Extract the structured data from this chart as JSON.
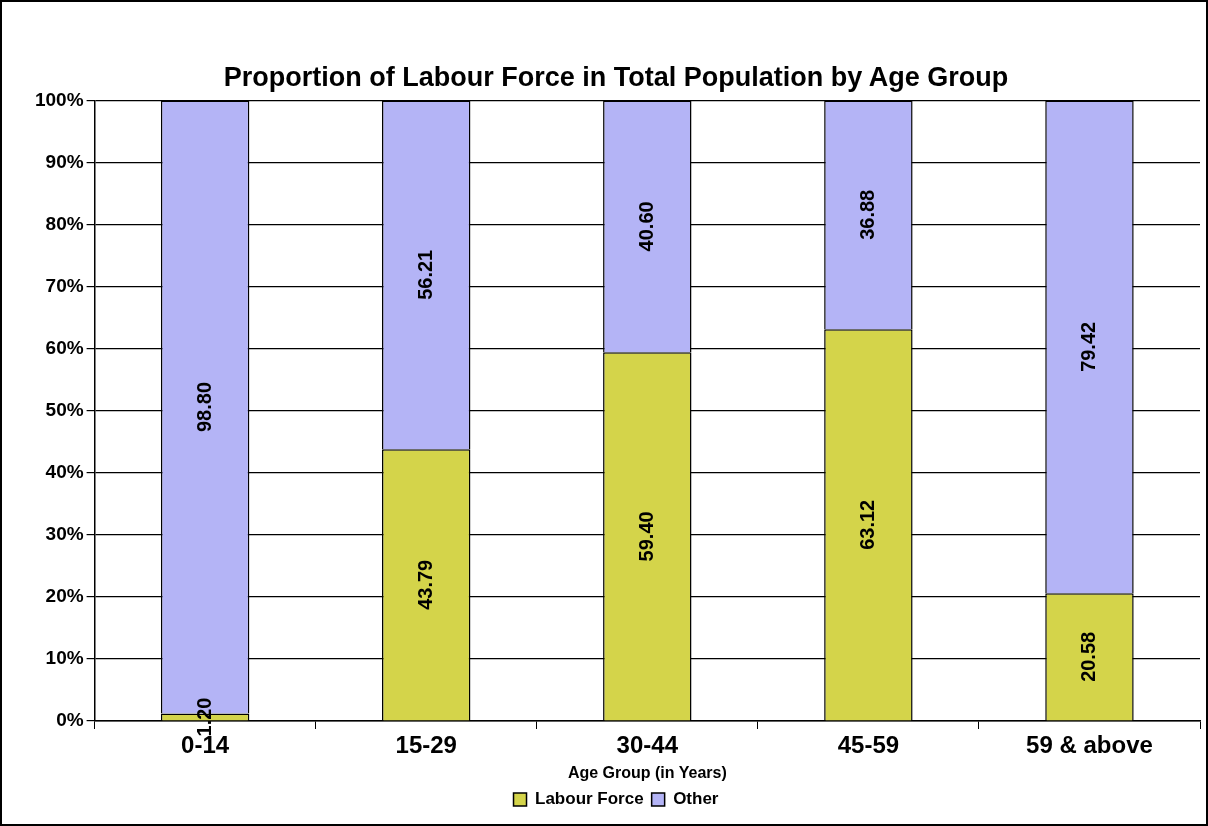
{
  "chart_data": {
    "type": "bar",
    "title": "Proportion of Labour Force in Total Population by Age Group",
    "xlabel": "Age Group (in Years)",
    "categories": [
      "0-14",
      "15-29",
      "30-44",
      "45-59",
      "59 & above"
    ],
    "series": [
      {
        "name": "Labour Force",
        "color": "#d4d44a",
        "values": [
          1.2,
          43.79,
          59.4,
          63.12,
          20.58
        ],
        "value_labels": [
          "1.20",
          "43.79",
          "59.40",
          "63.12",
          "20.58"
        ]
      },
      {
        "name": "Other",
        "color": "#b4b4f6",
        "values": [
          98.8,
          56.21,
          40.6,
          36.88,
          79.42
        ],
        "value_labels": [
          "98.80",
          "56.21",
          "40.60",
          "36.88",
          "79.42"
        ]
      }
    ],
    "stacked": true,
    "ylim": [
      0,
      100
    ],
    "yticks": [
      {
        "value": 0,
        "label": "0%"
      },
      {
        "value": 10,
        "label": "10%"
      },
      {
        "value": 20,
        "label": "20%"
      },
      {
        "value": 30,
        "label": "30%"
      },
      {
        "value": 40,
        "label": "40%"
      },
      {
        "value": 50,
        "label": "50%"
      },
      {
        "value": 60,
        "label": "60%"
      },
      {
        "value": 70,
        "label": "70%"
      },
      {
        "value": 80,
        "label": "80%"
      },
      {
        "value": 90,
        "label": "90%"
      },
      {
        "value": 100,
        "label": "100%"
      }
    ],
    "grid": "y",
    "legend": "bottom"
  }
}
